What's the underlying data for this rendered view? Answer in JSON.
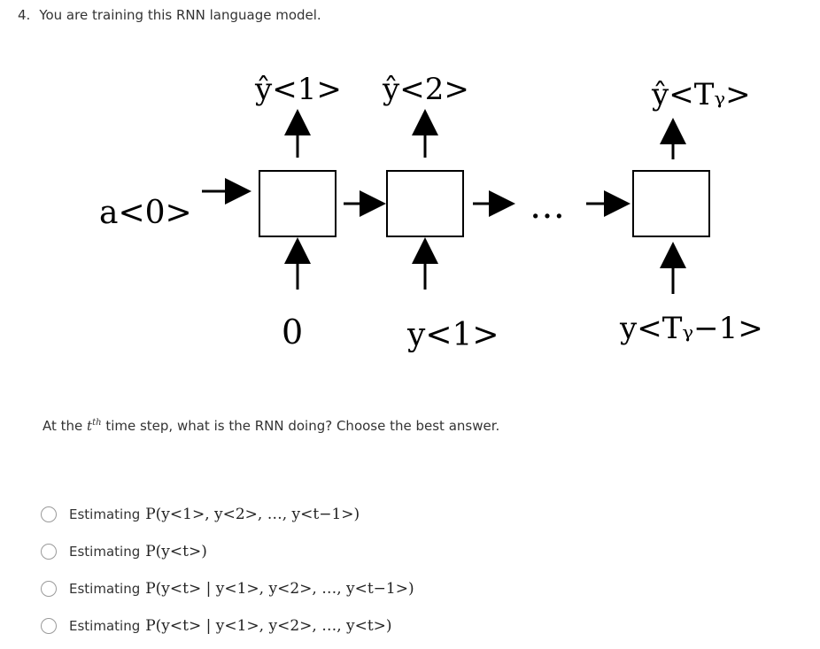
{
  "question": {
    "number": "4.",
    "title": "You are training this RNN language model."
  },
  "diagram": {
    "input_activation": "a<0>",
    "outputs": [
      "ŷ<1>",
      "ŷ<2>",
      "ŷ<Tᵧ>"
    ],
    "inputs": [
      "0",
      "y<1>",
      "y<Tᵧ−1>"
    ],
    "ellipsis": "…"
  },
  "prompt": {
    "before": "At the ",
    "sup": "th",
    "var": "t",
    "after": " time step, what is the RNN doing? Choose the best answer."
  },
  "options": [
    {
      "label": "Estimating",
      "math": "P(y<1>, y<2>, …, y<t−1>)"
    },
    {
      "label": "Estimating",
      "math": "P(y<t>)"
    },
    {
      "label": "Estimating",
      "math": "P(y<t> | y<1>, y<2>, …, y<t−1>)"
    },
    {
      "label": "Estimating",
      "math": "P(y<t> | y<1>, y<2>, …, y<t>)"
    }
  ]
}
